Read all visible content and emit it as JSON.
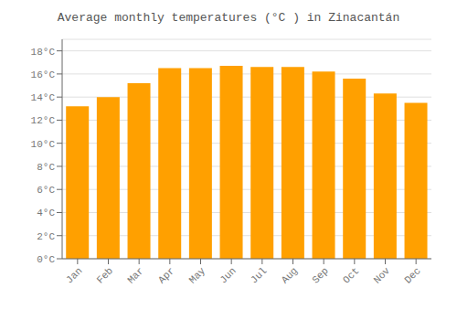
{
  "chart_data": {
    "type": "bar",
    "title": "Average monthly temperatures (°C ) in Zinacantán",
    "categories": [
      "Jan",
      "Feb",
      "Mar",
      "Apr",
      "May",
      "Jun",
      "Jul",
      "Aug",
      "Sep",
      "Oct",
      "Nov",
      "Dec"
    ],
    "values": [
      13.2,
      14.0,
      15.2,
      16.5,
      16.5,
      16.7,
      16.6,
      16.6,
      16.2,
      15.6,
      14.3,
      13.5
    ],
    "color": "#FFA000",
    "ylim": [
      0,
      19
    ],
    "yticks": [
      {
        "value": 0,
        "label": "0°C"
      },
      {
        "value": 2,
        "label": "2°C"
      },
      {
        "value": 4,
        "label": "4°C"
      },
      {
        "value": 6,
        "label": "6°C"
      },
      {
        "value": 8,
        "label": "8°C"
      },
      {
        "value": 10,
        "label": "10°C"
      },
      {
        "value": 12,
        "label": "12°C"
      },
      {
        "value": 14,
        "label": "14°C"
      },
      {
        "value": 16,
        "label": "16°C"
      },
      {
        "value": 18,
        "label": "18°C"
      }
    ],
    "grid": true
  }
}
